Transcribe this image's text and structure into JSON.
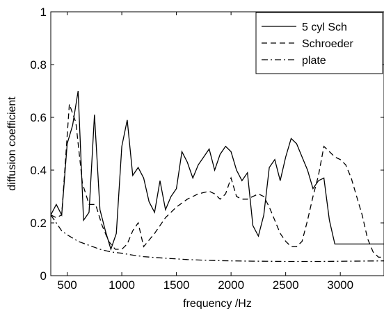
{
  "chart_data": {
    "type": "line",
    "title": "",
    "xlabel": "frequency /Hz",
    "ylabel": "diffusion coefficient",
    "xlim": [
      350,
      3400
    ],
    "ylim": [
      0,
      1
    ],
    "xticks": [
      500,
      1000,
      1500,
      2000,
      2500,
      3000
    ],
    "yticks": [
      0,
      0.2,
      0.4,
      0.6,
      0.8,
      1
    ],
    "xtick_labels": [
      "500",
      "1000",
      "1500",
      "2000",
      "2500",
      "3000"
    ],
    "ytick_labels": [
      "0",
      "0.2",
      "0.4",
      "0.6",
      "0.8",
      "1"
    ],
    "grid": false,
    "legend_position": "top-right",
    "series": [
      {
        "name": "5 cyl Sch",
        "style": "solid",
        "x": [
          350,
          400,
          450,
          500,
          550,
          600,
          650,
          700,
          750,
          800,
          850,
          900,
          950,
          1000,
          1050,
          1100,
          1150,
          1200,
          1250,
          1300,
          1350,
          1400,
          1450,
          1500,
          1550,
          1600,
          1650,
          1700,
          1750,
          1800,
          1850,
          1900,
          1950,
          2000,
          2050,
          2100,
          2150,
          2200,
          2250,
          2300,
          2350,
          2400,
          2450,
          2500,
          2550,
          2600,
          2650,
          2700,
          2750,
          2800,
          2850,
          2900,
          2950,
          3000,
          3050,
          3100,
          3150,
          3200,
          3250,
          3300,
          3350,
          3400
        ],
        "y": [
          0.23,
          0.27,
          0.23,
          0.5,
          0.57,
          0.7,
          0.21,
          0.24,
          0.61,
          0.25,
          0.17,
          0.1,
          0.16,
          0.49,
          0.59,
          0.38,
          0.41,
          0.37,
          0.28,
          0.24,
          0.36,
          0.25,
          0.3,
          0.33,
          0.47,
          0.43,
          0.37,
          0.42,
          0.45,
          0.48,
          0.4,
          0.46,
          0.49,
          0.47,
          0.4,
          0.36,
          0.39,
          0.19,
          0.15,
          0.23,
          0.41,
          0.44,
          0.36,
          0.45,
          0.52,
          0.5,
          0.45,
          0.4,
          0.33,
          0.36,
          0.37,
          0.21,
          0.12,
          0.12,
          0.12,
          0.12,
          0.12,
          0.12,
          0.12,
          0.12,
          0.12,
          0.12
        ]
      },
      {
        "name": "Schroeder",
        "style": "dashed",
        "x": [
          350,
          400,
          450,
          520,
          580,
          640,
          700,
          760,
          820,
          880,
          940,
          1000,
          1050,
          1100,
          1150,
          1200,
          1300,
          1400,
          1500,
          1600,
          1700,
          1800,
          1850,
          1900,
          1950,
          2000,
          2050,
          2100,
          2150,
          2200,
          2250,
          2300,
          2350,
          2400,
          2450,
          2500,
          2550,
          2600,
          2650,
          2700,
          2750,
          2800,
          2850,
          2900,
          2950,
          3000,
          3050,
          3100,
          3150,
          3200,
          3250,
          3300,
          3350,
          3400
        ],
        "y": [
          0.23,
          0.22,
          0.23,
          0.65,
          0.58,
          0.35,
          0.27,
          0.27,
          0.19,
          0.13,
          0.1,
          0.1,
          0.12,
          0.17,
          0.2,
          0.11,
          0.16,
          0.22,
          0.26,
          0.29,
          0.31,
          0.32,
          0.31,
          0.29,
          0.31,
          0.37,
          0.3,
          0.29,
          0.29,
          0.3,
          0.31,
          0.3,
          0.26,
          0.21,
          0.16,
          0.13,
          0.11,
          0.11,
          0.13,
          0.21,
          0.3,
          0.38,
          0.49,
          0.47,
          0.45,
          0.44,
          0.42,
          0.37,
          0.3,
          0.23,
          0.14,
          0.09,
          0.07,
          0.07
        ]
      },
      {
        "name": "plate",
        "style": "dashdot",
        "x": [
          350,
          400,
          450,
          500,
          600,
          700,
          800,
          900,
          1000,
          1100,
          1200,
          1400,
          1600,
          1800,
          2000,
          2200,
          2500,
          2800,
          3100,
          3400
        ],
        "y": [
          0.23,
          0.2,
          0.17,
          0.155,
          0.13,
          0.115,
          0.1,
          0.09,
          0.085,
          0.078,
          0.072,
          0.066,
          0.061,
          0.058,
          0.056,
          0.055,
          0.054,
          0.054,
          0.055,
          0.056
        ]
      }
    ]
  }
}
